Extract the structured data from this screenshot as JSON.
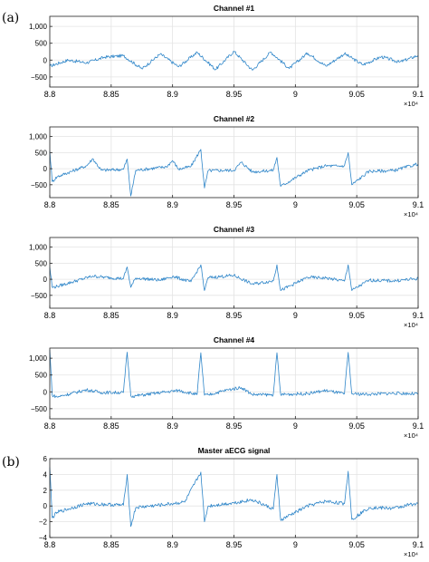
{
  "panel_labels": [
    "(a)",
    "(b)"
  ],
  "colors": {
    "signal": "#2f86c9",
    "axis": "#222222",
    "grid": "#e3e3e3"
  },
  "chart_data": [
    {
      "type": "line",
      "title": "Channel #1",
      "xlabel": "",
      "ylabel": "",
      "xlim": [
        88000,
        91000
      ],
      "ylim": [
        -800,
        1300
      ],
      "x_ticks": [
        88000,
        88500,
        89000,
        89500,
        90000,
        90500,
        91000
      ],
      "x_tick_labels": [
        "8.8",
        "8.85",
        "8.9",
        "8.95",
        "9",
        "9.05",
        "9.1"
      ],
      "x_exponent": "×10⁴",
      "y_ticks": [
        -500,
        0,
        500,
        1000
      ],
      "y_tick_labels": [
        "−500",
        "0",
        "500",
        "1,000"
      ],
      "grid": true,
      "series": [
        {
          "x": [
            88000,
            88150,
            88300,
            88450,
            88600,
            88750,
            88900,
            89050,
            89200,
            89350,
            89500,
            89650,
            89800,
            89950,
            90100,
            90250,
            90400,
            90550,
            90700,
            90850,
            91000
          ],
          "y": [
            -180,
            0,
            -80,
            90,
            130,
            -260,
            180,
            -200,
            230,
            -280,
            260,
            -300,
            240,
            -250,
            210,
            -180,
            190,
            -140,
            100,
            -60,
            140
          ]
        }
      ]
    },
    {
      "type": "line",
      "title": "Channel #2",
      "xlabel": "",
      "ylabel": "",
      "xlim": [
        88000,
        91000
      ],
      "ylim": [
        -900,
        1300
      ],
      "x_ticks": [
        88000,
        88500,
        89000,
        89500,
        90000,
        90500,
        91000
      ],
      "x_tick_labels": [
        "8.8",
        "8.85",
        "8.9",
        "8.95",
        "9",
        "9.05",
        "9.1"
      ],
      "x_exponent": "×10⁴",
      "y_ticks": [
        -500,
        0,
        500,
        1000
      ],
      "y_tick_labels": [
        "−500",
        "0",
        "500",
        "1,000"
      ],
      "grid": true,
      "series": [
        {
          "x": [
            88000,
            88020,
            88060,
            88300,
            88350,
            88420,
            88600,
            88630,
            88660,
            88700,
            88950,
            89000,
            89050,
            89150,
            89230,
            89260,
            89290,
            89500,
            89560,
            89650,
            89820,
            89850,
            89880,
            90100,
            90250,
            90350,
            90400,
            90430,
            90460,
            90600,
            90800,
            91000
          ],
          "y": [
            550,
            -400,
            -250,
            90,
            310,
            -50,
            -20,
            300,
            -850,
            -50,
            60,
            250,
            -20,
            70,
            600,
            -600,
            -60,
            -50,
            200,
            -100,
            -50,
            350,
            -550,
            -60,
            90,
            80,
            90,
            500,
            -500,
            -80,
            -60,
            150
          ]
        }
      ]
    },
    {
      "type": "line",
      "title": "Channel #3",
      "xlabel": "",
      "ylabel": "",
      "xlim": [
        88000,
        91000
      ],
      "ylim": [
        -900,
        1300
      ],
      "x_ticks": [
        88000,
        88500,
        89000,
        89500,
        90000,
        90500,
        91000
      ],
      "x_tick_labels": [
        "8.8",
        "8.85",
        "8.9",
        "8.95",
        "9",
        "9.05",
        "9.1"
      ],
      "x_exponent": "×10⁴",
      "y_ticks": [
        -500,
        0,
        500,
        1000
      ],
      "y_tick_labels": [
        "−500",
        "0",
        "500",
        "1,000"
      ],
      "grid": true,
      "series": [
        {
          "x": [
            88000,
            88020,
            88060,
            88350,
            88450,
            88600,
            88630,
            88660,
            88700,
            88900,
            89000,
            89150,
            89230,
            89260,
            89290,
            89500,
            89650,
            89820,
            89850,
            89880,
            90100,
            90250,
            90400,
            90430,
            90460,
            90600,
            90800,
            91000
          ],
          "y": [
            380,
            -250,
            -220,
            100,
            60,
            20,
            380,
            -250,
            40,
            -30,
            90,
            -80,
            450,
            -350,
            50,
            120,
            -150,
            -50,
            450,
            -350,
            60,
            40,
            -60,
            450,
            -350,
            -30,
            -50,
            20
          ]
        }
      ]
    },
    {
      "type": "line",
      "title": "Channel #4",
      "xlabel": "",
      "ylabel": "",
      "xlim": [
        88000,
        91000
      ],
      "ylim": [
        -800,
        1300
      ],
      "x_ticks": [
        88000,
        88500,
        89000,
        89500,
        90000,
        90500,
        91000
      ],
      "x_tick_labels": [
        "8.8",
        "8.85",
        "8.9",
        "8.95",
        "9",
        "9.05",
        "9.1"
      ],
      "x_exponent": "×10⁴",
      "y_ticks": [
        -500,
        0,
        500,
        1000
      ],
      "y_tick_labels": [
        "−500",
        "0",
        "500",
        "1,000"
      ],
      "grid": true,
      "series": [
        {
          "x": [
            88000,
            88020,
            88060,
            88300,
            88420,
            88600,
            88630,
            88660,
            88700,
            88950,
            89050,
            89200,
            89230,
            89260,
            89290,
            89450,
            89560,
            89650,
            89820,
            89850,
            89880,
            90100,
            90250,
            90400,
            90430,
            90460,
            90600,
            90800,
            91000
          ],
          "y": [
            1250,
            -100,
            -150,
            60,
            -20,
            -20,
            1180,
            -120,
            -120,
            0,
            40,
            -80,
            1160,
            -100,
            -90,
            60,
            130,
            -80,
            -90,
            1160,
            -80,
            -50,
            40,
            -60,
            1170,
            -60,
            -70,
            -40,
            -60
          ]
        }
      ]
    },
    {
      "type": "line",
      "title": "Master aECG signal",
      "xlabel": "",
      "ylabel": "",
      "xlim": [
        88000,
        91000
      ],
      "ylim": [
        -4,
        6
      ],
      "x_ticks": [
        88000,
        88500,
        89000,
        89500,
        90000,
        90500,
        91000
      ],
      "x_tick_labels": [
        "8.8",
        "8.85",
        "8.9",
        "8.95",
        "9",
        "9.05",
        "9.1"
      ],
      "x_exponent": "×10⁴",
      "y_ticks": [
        -4,
        -2,
        0,
        2,
        4,
        6
      ],
      "y_tick_labels": [
        "−4",
        "−2",
        "0",
        "2",
        "4",
        "6"
      ],
      "grid": true,
      "series": [
        {
          "x": [
            88000,
            88020,
            88060,
            88300,
            88600,
            88630,
            88660,
            88700,
            88950,
            89100,
            89230,
            89260,
            89290,
            89500,
            89650,
            89820,
            89850,
            89880,
            90100,
            90250,
            90400,
            90430,
            90460,
            90600,
            90800,
            91000
          ],
          "y": [
            4.9,
            -1.5,
            -0.8,
            0.3,
            0.1,
            4,
            -2.6,
            -0.2,
            0.2,
            0.5,
            4.3,
            -2,
            0,
            0.4,
            0.8,
            -0.4,
            4,
            -1.8,
            0,
            0.6,
            0.3,
            4.4,
            -1.7,
            -0.2,
            -0.3,
            0.4
          ]
        }
      ]
    }
  ]
}
